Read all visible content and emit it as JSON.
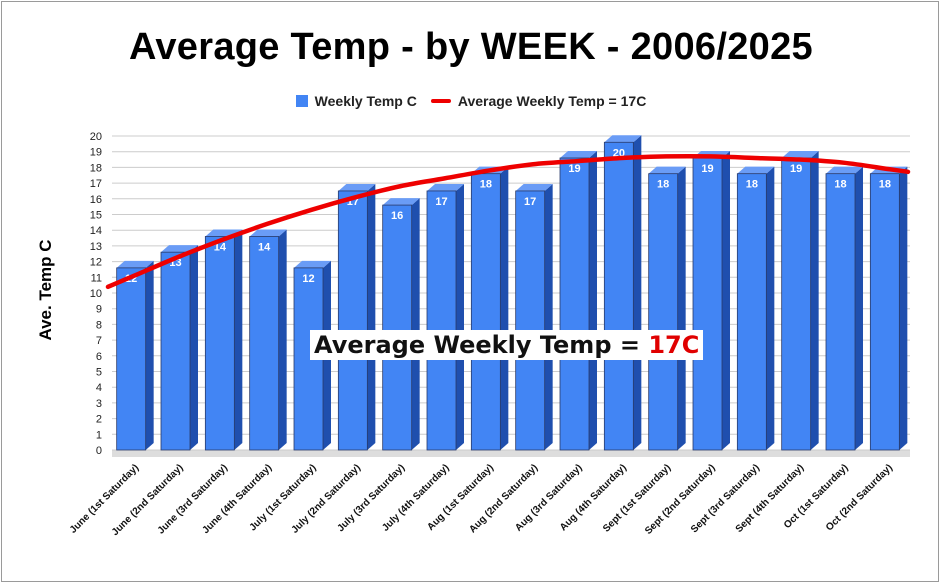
{
  "chart_data": {
    "type": "bar",
    "title": "Average Temp - by WEEK - 2006/2025",
    "ylabel": "Ave. Temp C",
    "xlabel": "",
    "ylim": [
      0,
      20
    ],
    "yticks": [
      0,
      1,
      2,
      3,
      4,
      5,
      6,
      7,
      8,
      9,
      10,
      11,
      12,
      13,
      14,
      15,
      16,
      17,
      18,
      19,
      20
    ],
    "categories": [
      "June (1st Saturday)",
      "June (2nd Saturday)",
      "June (3rd Saturday)",
      "June (4th Saturday)",
      "July (1st Saturday)",
      "July (2nd Saturday)",
      "July (3rd Saturday)",
      "July (4th Saturday)",
      "Aug (1st Saturday)",
      "Aug (2nd Saturday)",
      "Aug (3rd Saturday)",
      "Aug (4th Saturday)",
      "Sept (1st Saturday)",
      "Sept (2nd Saturday)",
      "Sept (3rd Saturday)",
      "Sept (4th Saturday)",
      "Oct (1st Saturday)",
      "Oct (2nd Saturday)"
    ],
    "series": [
      {
        "name": "Weekly Temp C",
        "values": [
          11.6,
          12.6,
          13.6,
          13.6,
          11.6,
          16.5,
          15.6,
          16.5,
          17.6,
          16.5,
          18.6,
          19.6,
          17.6,
          18.6,
          17.6,
          18.6,
          17.6,
          17.6
        ],
        "labels": [
          "12",
          "13",
          "14",
          "14",
          "12",
          "17",
          "16",
          "17",
          "18",
          "17",
          "19",
          "20",
          "18",
          "19",
          "18",
          "19",
          "18",
          "18"
        ],
        "color": "#4285f4"
      },
      {
        "name": "Average Weekly Temp = 17C",
        "type": "trendline",
        "values": [
          11.1,
          12.3,
          13.4,
          14.4,
          15.3,
          16.1,
          16.8,
          17.3,
          17.8,
          18.2,
          18.4,
          18.6,
          18.7,
          18.7,
          18.6,
          18.5,
          18.3,
          17.9
        ],
        "color": "#ee0000"
      }
    ],
    "annotation": {
      "prefix": "Average Weekly Temp = ",
      "highlight": "17C",
      "highlight_color": "#e00000"
    },
    "legend_position": "top",
    "grid": true
  }
}
